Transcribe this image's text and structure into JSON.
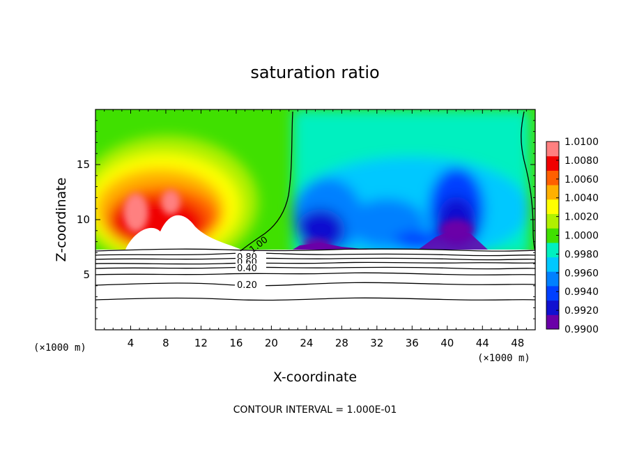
{
  "chart_data": {
    "type": "heatmap",
    "title": "saturation ratio",
    "xlabel": "X-coordinate",
    "ylabel": "Z-coordinate",
    "x_unit_left": "(×1000 m)",
    "x_unit_right": "(×1000 m)",
    "footer": "CONTOUR INTERVAL = 1.000E-01",
    "xlim": [
      0,
      50
    ],
    "ylim": [
      0,
      20
    ],
    "x_ticks": [
      4,
      8,
      12,
      16,
      20,
      24,
      28,
      32,
      36,
      40,
      44,
      48
    ],
    "y_ticks": [
      5,
      10,
      15
    ],
    "colorbar": {
      "levels": [
        0.99,
        0.992,
        0.994,
        0.996,
        0.998,
        1.0,
        1.002,
        1.004,
        1.006,
        1.008,
        1.01
      ],
      "labels": [
        "0.9900",
        "0.9920",
        "0.9940",
        "0.9960",
        "0.9980",
        "1.0000",
        "1.0020",
        "1.0040",
        "1.0060",
        "1.0080",
        "1.0100"
      ],
      "colors": [
        "#6a00a8",
        "#1010d0",
        "#0040ff",
        "#0080ff",
        "#00c8ff",
        "#00f0c0",
        "#40e000",
        "#b0f000",
        "#ffff00",
        "#ffb000",
        "#ff6000",
        "#f00000",
        "#ff8080"
      ]
    },
    "contour_labels": [
      "1.00",
      "0.80",
      "0.60",
      "0.40",
      "0.20"
    ],
    "grid": false
  }
}
